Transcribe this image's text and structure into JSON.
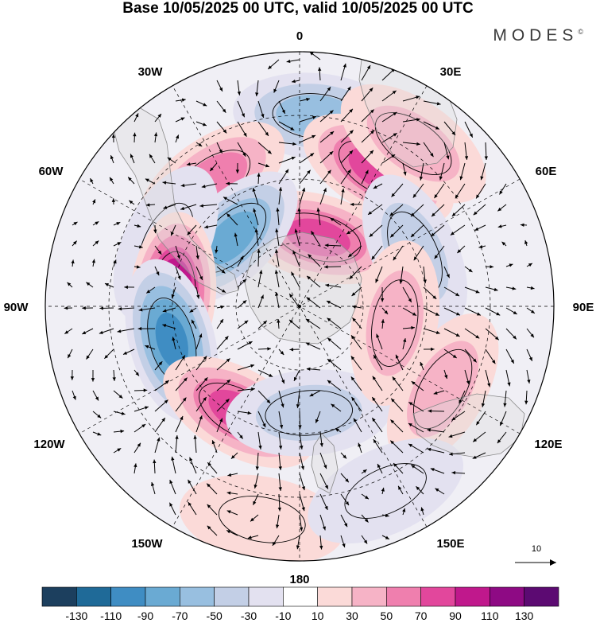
{
  "title": "Base 10/05/2025 00 UTC, valid 10/05/2025 00 UTC",
  "brand": "MODES",
  "brand_mark": "©",
  "longitude_labels": {
    "n0": "0",
    "n30e": "30E",
    "n60e": "60E",
    "n90e": "90E",
    "n120e": "120E",
    "n150e": "150E",
    "n180": "180",
    "n150w": "150W",
    "n120w": "120W",
    "n90w": "90W",
    "n60w": "60W",
    "n30w": "30W"
  },
  "reference_vector": {
    "value": "10"
  },
  "colorbar": {
    "colors": [
      "#1c3f5e",
      "#1f6a98",
      "#3f8dc3",
      "#6aaad3",
      "#98bfe0",
      "#c3cfe6",
      "#e3e1f0",
      "#ffffff",
      "#fbdad8",
      "#f6b3c6",
      "#ef7fae",
      "#e2479c",
      "#c0188c",
      "#8e0a84",
      "#5c0a72"
    ],
    "ticks": [
      "-130",
      "-110",
      "-90",
      "-70",
      "-50",
      "-30",
      "-10",
      "10",
      "30",
      "50",
      "70",
      "90",
      "110",
      "130"
    ]
  },
  "colors": {
    "coastline": "#8a8a8a",
    "grid": "#000000",
    "land_fill": "#d9d9d9"
  },
  "anomaly_cells": [
    {
      "lon": 5,
      "colat": 0.75,
      "value": -75,
      "name": "cell-trough-0"
    },
    {
      "lon": 30,
      "colat": 0.62,
      "value": 95,
      "name": "cell-ridge-30e"
    },
    {
      "lon": 35,
      "colat": 0.78,
      "value": 45,
      "name": "cell-ridge-30e-outer"
    },
    {
      "lon": 15,
      "colat": 0.28,
      "value": 85,
      "name": "cell-ridge-pole"
    },
    {
      "lon": -35,
      "colat": 0.6,
      "value": 65,
      "name": "cell-ridge-30w"
    },
    {
      "lon": -45,
      "colat": 0.38,
      "value": -95,
      "name": "cell-trough-50w"
    },
    {
      "lon": -65,
      "colat": 0.58,
      "value": -35,
      "name": "cell-trough-60w"
    },
    {
      "lon": -85,
      "colat": 0.5,
      "value": 125,
      "name": "cell-ridge-85w"
    },
    {
      "lon": -105,
      "colat": 0.52,
      "value": -115,
      "name": "cell-trough-105w"
    },
    {
      "lon": -150,
      "colat": 0.48,
      "value": 95,
      "name": "cell-ridge-150w"
    },
    {
      "lon": 175,
      "colat": 0.42,
      "value": -55,
      "name": "cell-trough-180"
    },
    {
      "lon": 65,
      "colat": 0.5,
      "value": -45,
      "name": "cell-trough-65e"
    },
    {
      "lon": 100,
      "colat": 0.38,
      "value": 45,
      "name": "cell-ridge-100e"
    },
    {
      "lon": 120,
      "colat": 0.65,
      "value": 55,
      "name": "cell-ridge-120e"
    },
    {
      "lon": -170,
      "colat": 0.85,
      "value": 35,
      "name": "cell-ridge-170w"
    },
    {
      "lon": 155,
      "colat": 0.8,
      "value": -15,
      "name": "cell-weak-155e"
    }
  ]
}
